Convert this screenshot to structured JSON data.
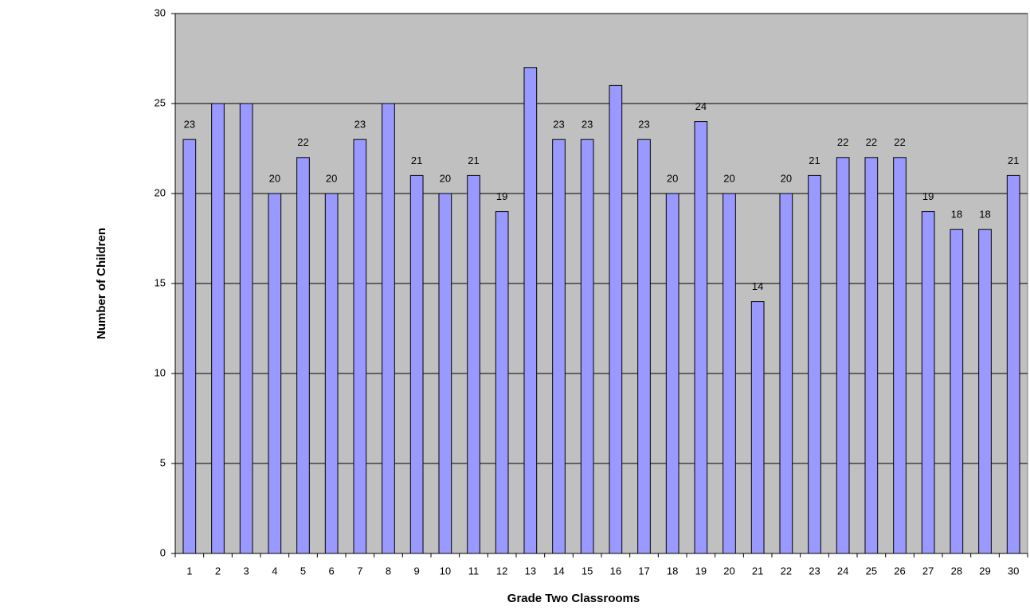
{
  "chart_data": {
    "type": "bar",
    "x_label": "Grade Two Classrooms",
    "y_label": "Number of Children",
    "categories": [
      "1",
      "2",
      "3",
      "4",
      "5",
      "6",
      "7",
      "8",
      "9",
      "10",
      "11",
      "12",
      "13",
      "14",
      "15",
      "16",
      "17",
      "18",
      "19",
      "20",
      "21",
      "22",
      "23",
      "24",
      "25",
      "26",
      "27",
      "28",
      "29",
      "30"
    ],
    "values": [
      23,
      25,
      25,
      20,
      22,
      20,
      23,
      25,
      21,
      20,
      21,
      19,
      27,
      23,
      23,
      26,
      23,
      20,
      24,
      20,
      14,
      20,
      21,
      22,
      22,
      22,
      19,
      18,
      18,
      21
    ],
    "value_labels": [
      "23",
      null,
      null,
      "20",
      "22",
      "20",
      "23",
      null,
      "21",
      "20",
      "21",
      "19",
      null,
      "23",
      "23",
      null,
      "23",
      "20",
      "24",
      "20",
      "14",
      "20",
      "21",
      "22",
      "22",
      "22",
      "19",
      "18",
      "18",
      "21"
    ],
    "color": "#9999ff",
    "plot_background": "#c0c0c0",
    "ylim": [
      0,
      30
    ],
    "yticks": [
      0,
      5,
      10,
      15,
      20,
      25,
      30
    ],
    "grid": true
  }
}
